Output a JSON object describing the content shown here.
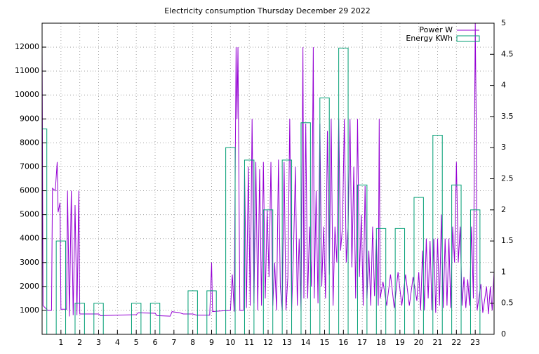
{
  "chart_data": {
    "type": "line",
    "title": "Electricity consumption Thursday December 29 2022",
    "xlim": [
      0,
      24
    ],
    "xticks": [
      1,
      2,
      3,
      4,
      5,
      6,
      7,
      8,
      9,
      10,
      11,
      12,
      13,
      14,
      15,
      16,
      17,
      18,
      19,
      20,
      21,
      22,
      23
    ],
    "ylim": [
      0,
      13000
    ],
    "yticks": [
      1000,
      2000,
      3000,
      4000,
      5000,
      6000,
      7000,
      8000,
      9000,
      10000,
      11000,
      12000
    ],
    "y2lim": [
      0,
      5
    ],
    "y2ticks": [
      0,
      0.5,
      1,
      1.5,
      2,
      2.5,
      3,
      3.5,
      4,
      4.5,
      5
    ],
    "grid": true,
    "legend": "top-right",
    "series": [
      {
        "name": "Power W",
        "color": "#9400d3",
        "style": "line",
        "x": [
          0,
          0.05,
          0.3,
          0.5,
          0.55,
          0.7,
          0.8,
          0.85,
          0.95,
          1.0,
          1.3,
          1.35,
          1.45,
          1.55,
          1.65,
          1.75,
          1.85,
          1.95,
          2.0,
          3.0,
          3.1,
          4.0,
          5.0,
          5.1,
          6.0,
          6.1,
          6.8,
          6.9,
          7.3,
          7.5,
          8.0,
          8.2,
          8.9,
          9.0,
          9.05,
          9.3,
          10.0,
          10.1,
          10.2,
          10.3,
          10.35,
          10.4,
          10.5,
          10.7,
          10.75,
          10.85,
          10.95,
          11.05,
          11.15,
          11.25,
          11.35,
          11.45,
          11.55,
          11.65,
          11.75,
          11.85,
          11.95,
          12.05,
          12.15,
          12.25,
          12.35,
          12.45,
          12.55,
          12.65,
          12.75,
          12.85,
          12.95,
          13.05,
          13.15,
          13.25,
          13.35,
          13.45,
          13.55,
          13.65,
          13.75,
          13.85,
          13.9,
          14.0,
          14.1,
          14.2,
          14.3,
          14.4,
          14.45,
          14.55,
          14.65,
          14.75,
          14.85,
          14.95,
          15.05,
          15.15,
          15.25,
          15.35,
          15.45,
          15.55,
          15.65,
          15.75,
          15.85,
          15.95,
          16.05,
          16.15,
          16.25,
          16.35,
          16.45,
          16.55,
          16.65,
          16.75,
          16.85,
          16.95,
          17.05,
          17.15,
          17.25,
          17.35,
          17.45,
          17.55,
          17.65,
          17.75,
          17.85,
          17.9,
          17.95,
          18.1,
          18.3,
          18.5,
          18.7,
          18.9,
          19.1,
          19.3,
          19.5,
          19.7,
          19.9,
          20.0,
          20.1,
          20.2,
          20.3,
          20.4,
          20.5,
          20.6,
          20.7,
          20.8,
          20.9,
          21.0,
          21.1,
          21.2,
          21.3,
          21.4,
          21.5,
          21.6,
          21.7,
          21.8,
          21.9,
          22.0,
          22.1,
          22.2,
          22.3,
          22.4,
          22.5,
          22.6,
          22.7,
          22.8,
          22.9,
          23.0,
          23.05,
          23.1,
          23.3,
          23.4,
          23.6,
          23.7,
          23.8,
          23.9,
          24.0
        ],
        "values": [
          12000,
          1200,
          1000,
          1000,
          6100,
          6000,
          7200,
          5100,
          5500,
          1050,
          1050,
          6000,
          750,
          6000,
          800,
          5400,
          800,
          6000,
          850,
          850,
          780,
          800,
          820,
          900,
          880,
          780,
          760,
          950,
          900,
          850,
          850,
          800,
          800,
          3000,
          950,
          970,
          1000,
          2500,
          950,
          12000,
          9000,
          12000,
          1000,
          1000,
          6900,
          1100,
          7000,
          1200,
          9000,
          1300,
          7200,
          1000,
          6900,
          1200,
          7200,
          1500,
          5200,
          2400,
          7200,
          1200,
          3000,
          1000,
          7300,
          2000,
          1000,
          7200,
          1000,
          2400,
          9000,
          1000,
          3500,
          7000,
          1200,
          4000,
          1000,
          12000,
          1500,
          8800,
          1500,
          4500,
          2000,
          12000,
          1500,
          6000,
          1300,
          8800,
          2000,
          4500,
          1500,
          8500,
          2500,
          9000,
          1200,
          4500,
          3000,
          9000,
          3500,
          4500,
          9000,
          3000,
          4500,
          9000,
          2800,
          7000,
          1500,
          9000,
          2400,
          5000,
          1200,
          6200,
          1500,
          3500,
          1200,
          4500,
          1600,
          4000,
          1200,
          9000,
          1500,
          2200,
          1200,
          2500,
          1100,
          2600,
          1200,
          2500,
          1200,
          2400,
          1400,
          2600,
          1000,
          3500,
          1000,
          4000,
          1500,
          3900,
          1000,
          4000,
          900,
          4000,
          1200,
          5000,
          1100,
          4000,
          1200,
          4000,
          1100,
          4500,
          3000,
          7200,
          3000,
          4500,
          1200,
          2400,
          1100,
          2300,
          1200,
          4500,
          1500,
          13000,
          9000,
          1000,
          2100,
          900,
          2000,
          850,
          2000,
          1000,
          2600
        ]
      },
      {
        "name": "Energy KWh",
        "color": "#009e73",
        "style": "boxes",
        "axis": "y2",
        "x": [
          0,
          1,
          2,
          3,
          4,
          5,
          6,
          7,
          8,
          9,
          10,
          11,
          12,
          13,
          14,
          15,
          16,
          17,
          18,
          19,
          20,
          21,
          22,
          23
        ],
        "values": [
          3.3,
          1.5,
          0.5,
          0.5,
          0,
          0.5,
          0.5,
          0,
          0.7,
          0.7,
          3.0,
          2.8,
          2.0,
          2.8,
          3.4,
          3.8,
          4.6,
          2.4,
          1.7,
          1.7,
          2.2,
          3.2,
          2.4,
          2.0
        ]
      }
    ]
  }
}
